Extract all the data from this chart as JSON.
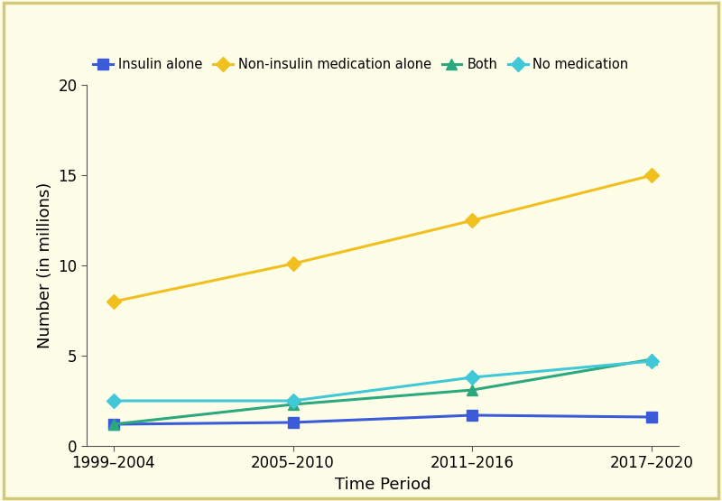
{
  "x_labels": [
    "1999–2004",
    "2005–2010",
    "2011–2016",
    "2017–2020"
  ],
  "x_positions": [
    0,
    1,
    2,
    3
  ],
  "series": [
    {
      "label": "Insulin alone",
      "values": [
        1.2,
        1.3,
        1.7,
        1.6
      ],
      "color": "#3b5bdb",
      "marker": "s",
      "markersize": 8,
      "linewidth": 2.2
    },
    {
      "label": "Non-insulin medication alone",
      "values": [
        8.0,
        10.1,
        12.5,
        15.0
      ],
      "color": "#f0c020",
      "marker": "D",
      "markersize": 8,
      "linewidth": 2.2
    },
    {
      "label": "Both",
      "values": [
        1.2,
        2.3,
        3.1,
        4.8
      ],
      "color": "#2ca87f",
      "marker": "^",
      "markersize": 8,
      "linewidth": 2.2
    },
    {
      "label": "No medication",
      "values": [
        2.5,
        2.5,
        3.8,
        4.7
      ],
      "color": "#40c8d8",
      "marker": "D",
      "markersize": 8,
      "linewidth": 2.2
    }
  ],
  "xlabel": "Time Period",
  "ylabel": "Number (in millions)",
  "ylim": [
    0,
    20
  ],
  "yticks": [
    0,
    5,
    10,
    15,
    20
  ],
  "background_color": "#fefee8",
  "border_color": "#d4c97a",
  "legend_fontsize": 10.5,
  "axis_fontsize": 13,
  "tick_fontsize": 12,
  "figsize": [
    8.0,
    5.55
  ],
  "dpi": 100
}
